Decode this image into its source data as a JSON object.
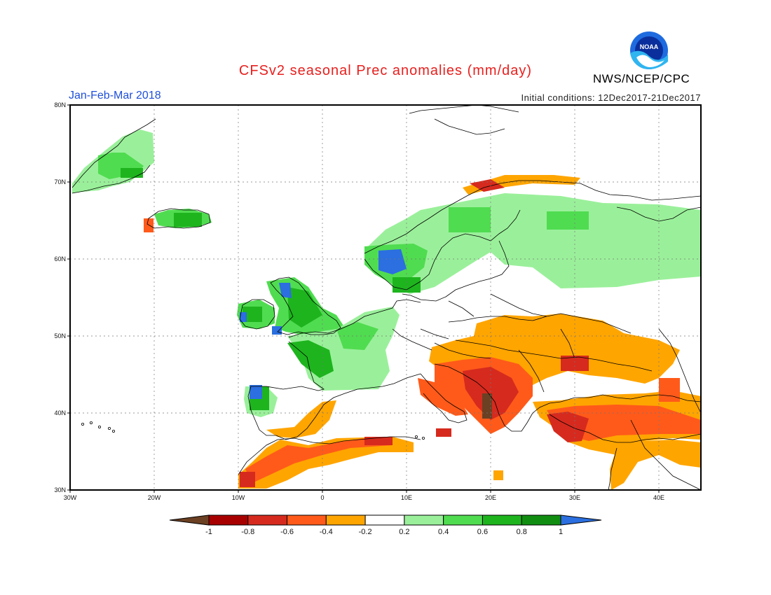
{
  "header": {
    "title": "CFSv2 seasonal Prec anomalies (mm/day)",
    "period": "Jan-Feb-Mar 2018",
    "initial_conditions": "Initial conditions: 12Dec2017-21Dec2017",
    "organization": "NWS/NCEP/CPC",
    "logo_text": "NOAA"
  },
  "axes": {
    "lon_ticks": [
      "30W",
      "20W",
      "10W",
      "0",
      "10E",
      "20E",
      "30E",
      "40E"
    ],
    "lat_ticks": [
      "30N",
      "40N",
      "50N",
      "60N",
      "70N",
      "80N"
    ]
  },
  "colorbar": {
    "levels": [
      "-1",
      "-0.8",
      "-0.6",
      "-0.4",
      "-0.2",
      "0.2",
      "0.4",
      "0.6",
      "0.8",
      "1"
    ],
    "colors": [
      "#6b4023",
      "#a80000",
      "#d62a1e",
      "#ff5a1a",
      "#ffa500",
      "#ffffff",
      "#9af09a",
      "#50dc50",
      "#1eb41e",
      "#118e11",
      "#2b6fe0"
    ]
  }
}
